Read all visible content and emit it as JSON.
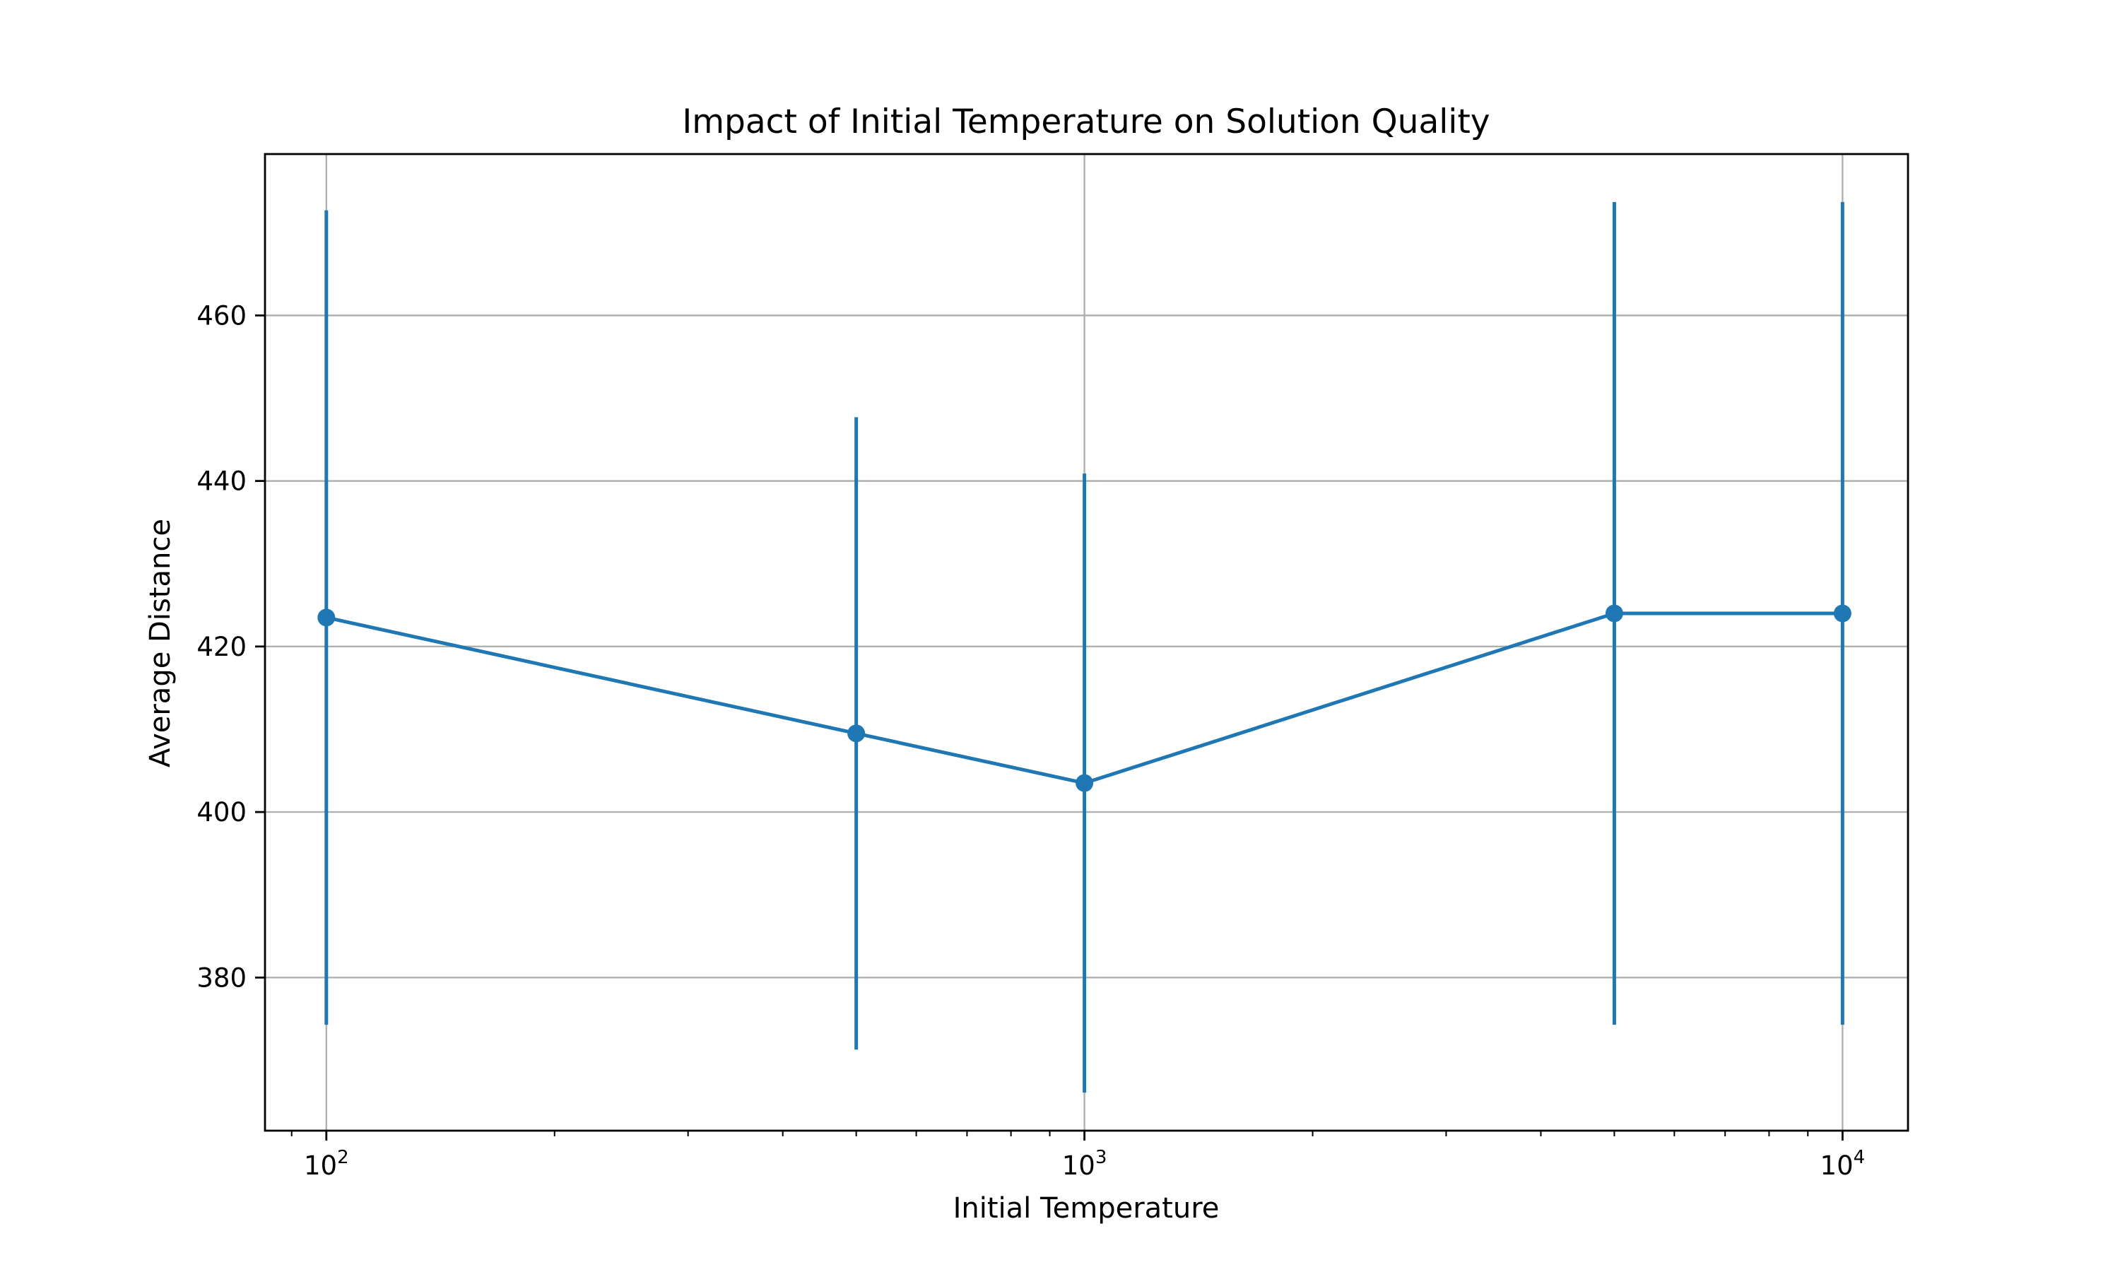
{
  "chart_data": {
    "type": "line",
    "title": "Impact of Initial Temperature on Solution Quality",
    "xlabel": "Initial Temperature",
    "ylabel": "Average Distance",
    "xscale": "log",
    "xlim": [
      83,
      12200
    ],
    "ylim": [
      361.5,
      479.5
    ],
    "grid": true,
    "color": "#1f77b4",
    "x_ticks": [
      {
        "value": 100,
        "base": "10",
        "exp": "2"
      },
      {
        "value": 1000,
        "base": "10",
        "exp": "3"
      },
      {
        "value": 10000,
        "base": "10",
        "exp": "4"
      }
    ],
    "y_ticks": [
      380,
      400,
      420,
      440,
      460
    ],
    "series": [
      {
        "x": [
          100,
          500,
          1000,
          5000,
          10000
        ],
        "y": [
          423.5,
          409.5,
          403.5,
          424.0,
          424.0
        ],
        "err_low": [
          374.3,
          371.3,
          366.1,
          374.3,
          374.3
        ],
        "err_high": [
          472.7,
          447.7,
          440.9,
          473.7,
          473.7
        ]
      }
    ]
  }
}
